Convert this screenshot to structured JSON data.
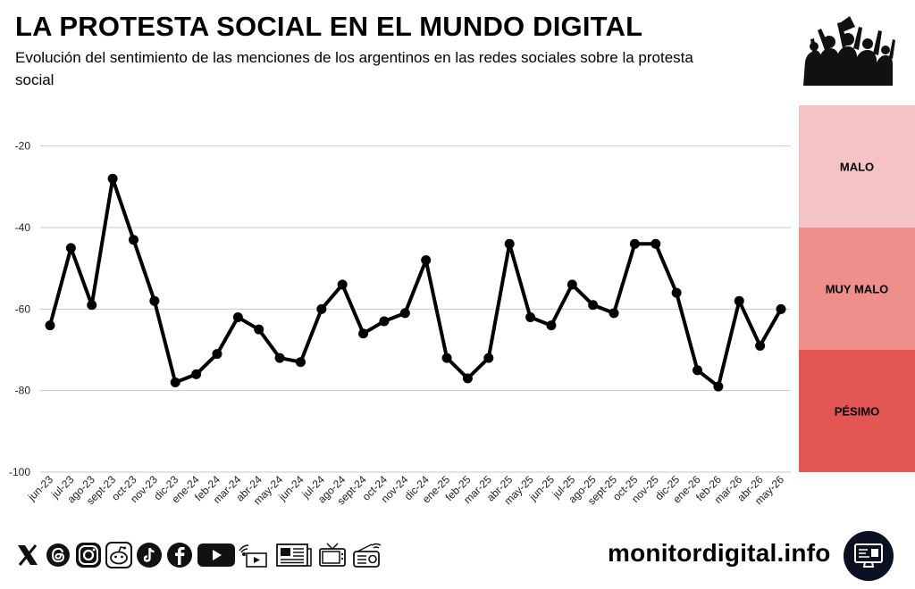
{
  "header": {
    "title": "LA PROTESTA SOCIAL EN EL MUNDO DIGITAL",
    "subtitle": "Evolución del sentimiento de las menciones de los argentinos en las redes sociales sobre la protesta social"
  },
  "chart_data": {
    "type": "line",
    "categories": [
      "jun-23",
      "jul-23",
      "ago-23",
      "sept-23",
      "oct-23",
      "nov-23",
      "dic-23",
      "ene-24",
      "feb-24",
      "mar-24",
      "abr-24",
      "may-24",
      "jun-24",
      "jul-24",
      "ago-24",
      "sept-24",
      "oct-24",
      "nov-24",
      "dic-24",
      "ene-25",
      "feb-25",
      "mar-25",
      "abr-25",
      "may-25",
      "jun-25",
      "jul-25",
      "ago-25",
      "sept-25",
      "oct-25",
      "nov-25",
      "dic-25",
      "ene-26",
      "feb-26",
      "mar-26",
      "abr-26",
      "may-26"
    ],
    "series": [
      {
        "values": [
          -64,
          -45,
          -59,
          -28,
          -43,
          -58,
          -78,
          -76,
          -71,
          -62,
          -65,
          -72,
          -73,
          -60,
          -54,
          -66,
          -63,
          -61,
          -48,
          -72,
          -77,
          -72,
          -44,
          -62,
          -64,
          -54,
          -59,
          -61,
          -44,
          -44,
          -56,
          -75,
          -79,
          -58,
          -69,
          -60
        ]
      }
    ],
    "ylim": [
      -100,
      -10
    ],
    "yticks": [
      -20,
      -40,
      -60,
      -80,
      -100
    ],
    "grid": true,
    "line_color": "#000000",
    "bands": [
      {
        "label": "MALO",
        "from": -10,
        "to": -40,
        "color": "#f5c3c3"
      },
      {
        "label": "MUY MALO",
        "from": -40,
        "to": -70,
        "color": "#ef8f8c"
      },
      {
        "label": "PÉSIMO",
        "from": -70,
        "to": -100,
        "color": "#e45653"
      }
    ]
  },
  "footer": {
    "site": "monitordigital.info",
    "social_icons": [
      "x-icon",
      "threads-icon",
      "instagram-icon",
      "reddit-icon",
      "tiktok-icon",
      "facebook-icon",
      "youtube-icon"
    ],
    "media_icons": [
      "radio-tv-icon",
      "newspaper-icon",
      "television-icon",
      "radio-icon"
    ]
  }
}
